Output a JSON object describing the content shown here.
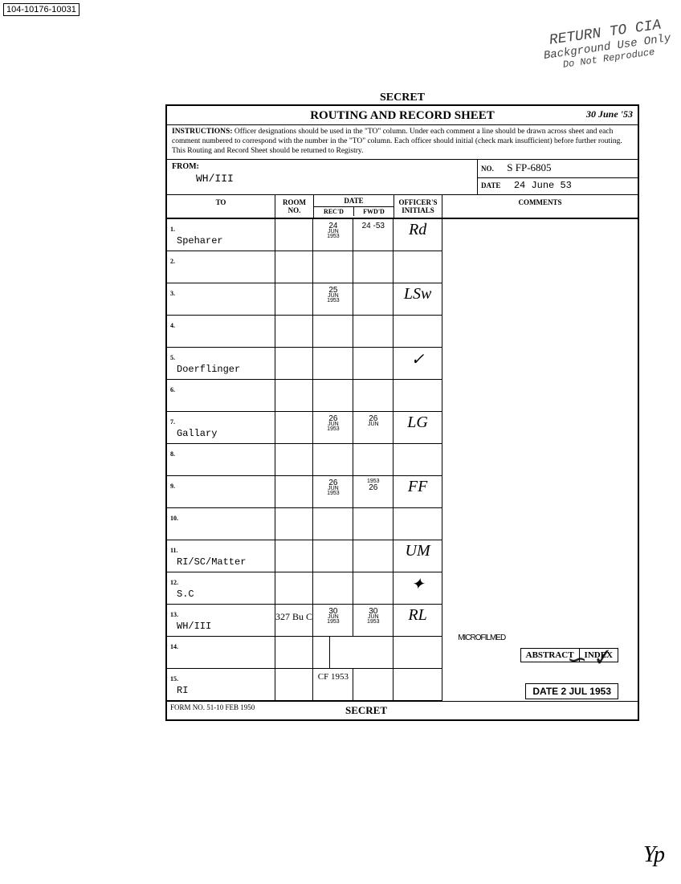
{
  "page_id": "104-10176-10031",
  "stamp": {
    "line1": "RETURN TO CIA",
    "line2": "Background Use Only",
    "line3": "Do Not Reproduce"
  },
  "classification": "SECRET",
  "form_title": "ROUTING AND RECORD SHEET",
  "title_annotation": "30 June '53",
  "instructions_label": "INSTRUCTIONS:",
  "instructions": "Officer designations should be used in the \"TO\" column. Under each comment a line should be drawn across sheet and each comment numbered to correspond with the number in the \"TO\" column. Each officer should initial (check mark insufficient) before further routing. This Routing and Record Sheet should be returned to Registry.",
  "from": {
    "label": "FROM:",
    "value": "WH/III"
  },
  "doc_no": {
    "label": "NO.",
    "value": "S  FP-6805"
  },
  "doc_date": {
    "label": "DATE",
    "value": "24 June 53"
  },
  "headers": {
    "to": "TO",
    "room": "ROOM NO.",
    "date": "DATE",
    "recd": "REC'D",
    "fwd": "FWD'D",
    "initials": "OFFICER'S INITIALS",
    "comments": "COMMENTS"
  },
  "rows": [
    {
      "num": "1.",
      "name": "Speharer",
      "room": "",
      "recd": "24 JUN 1953",
      "fwd": "24 -53",
      "init": "Rd"
    },
    {
      "num": "2.",
      "name": "",
      "room": "",
      "recd": "",
      "fwd": "",
      "init": ""
    },
    {
      "num": "3.",
      "name": "",
      "room": "",
      "recd": "25 JUN 1953",
      "fwd": "",
      "init": "LSw"
    },
    {
      "num": "4.",
      "name": "",
      "room": "",
      "recd": "",
      "fwd": "",
      "init": ""
    },
    {
      "num": "5.",
      "name": "Doerflinger",
      "room": "",
      "recd": "",
      "fwd": "",
      "init": "✓"
    },
    {
      "num": "6.",
      "name": "",
      "room": "",
      "recd": "",
      "fwd": "",
      "init": ""
    },
    {
      "num": "7.",
      "name": "Gallary",
      "room": "",
      "recd": "26 JUN 1953",
      "fwd": "26 JUN",
      "init": "LG"
    },
    {
      "num": "8.",
      "name": "",
      "room": "",
      "recd": "",
      "fwd": "",
      "init": ""
    },
    {
      "num": "9.",
      "name": "",
      "room": "",
      "recd": "26 JUN 1953",
      "fwd": "1953 26",
      "init": "FF"
    },
    {
      "num": "10.",
      "name": "",
      "room": "",
      "recd": "",
      "fwd": "",
      "init": ""
    },
    {
      "num": "11.",
      "name": "RI/SC/Matter",
      "room": "",
      "recd": "",
      "fwd": "",
      "init": "UM"
    },
    {
      "num": "12.",
      "name": "S.C",
      "room": "",
      "recd": "",
      "fwd": "",
      "init": "✦"
    },
    {
      "num": "13.",
      "name": "WH/III",
      "room": "327 Bu C",
      "recd": "30 JUN 1953",
      "fwd": "30 JUN 1953",
      "init": "RL"
    },
    {
      "num": "14.",
      "name": "",
      "room": "",
      "recd": "",
      "fwd": "",
      "init": ""
    },
    {
      "num": "15.",
      "name": "RI",
      "room": "",
      "recd": "",
      "fwd": "",
      "init": ""
    }
  ],
  "microfilmed": "MICROFILMED",
  "row15_note": "CF 1953",
  "abstract": {
    "left": "ABSTRACT",
    "right": "INDEX"
  },
  "footer_date": "DATE  2 JUL 1953",
  "form_no": "FORM NO. 51-10 FEB 1950",
  "footer_class": "SECRET",
  "scrawl": "✓",
  "bottom_sig": "Yp"
}
